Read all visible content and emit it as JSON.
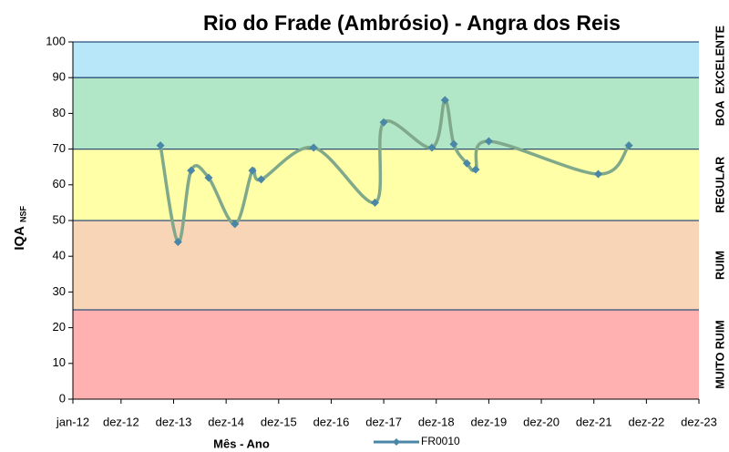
{
  "chart_data": {
    "type": "line",
    "title": "Rio do Frade (Ambrósio) - Angra dos Reis",
    "x_label": "Mês - Ano",
    "y_label": "IQA",
    "y_label_subscript": "NSF",
    "xlim": [
      "2012-01",
      "2023-12"
    ],
    "xticks": [
      {
        "value": "2012-01",
        "label": "jan-12"
      },
      {
        "value": "2012-12",
        "label": "dez-12"
      },
      {
        "value": "2013-12",
        "label": "dez-13"
      },
      {
        "value": "2014-12",
        "label": "dez-14"
      },
      {
        "value": "2015-12",
        "label": "dez-15"
      },
      {
        "value": "2016-12",
        "label": "dez-16"
      },
      {
        "value": "2017-12",
        "label": "dez-17"
      },
      {
        "value": "2018-12",
        "label": "dez-18"
      },
      {
        "value": "2019-12",
        "label": "dez-19"
      },
      {
        "value": "2020-12",
        "label": "dez-20"
      },
      {
        "value": "2021-12",
        "label": "dez-21"
      },
      {
        "value": "2022-12",
        "label": "dez-22"
      },
      {
        "value": "2023-12",
        "label": "dez-23"
      }
    ],
    "ylim": [
      0,
      100
    ],
    "yticks": [
      0,
      10,
      20,
      30,
      40,
      50,
      60,
      70,
      80,
      90,
      100
    ],
    "bands": [
      {
        "from": 0,
        "to": 25,
        "label": "MUITO RUIM",
        "color": "#ffb1b1"
      },
      {
        "from": 25,
        "to": 50,
        "label": "RUIM",
        "color": "#f8d5b6"
      },
      {
        "from": 50,
        "to": 70,
        "label": "REGULAR",
        "color": "#ffffa8"
      },
      {
        "from": 70,
        "to": 90,
        "label": "BOA",
        "color": "#b1e6c7"
      },
      {
        "from": 90,
        "to": 100,
        "label": "EXCELENTE",
        "color": "#b7e7f8"
      }
    ],
    "x": [
      "2013-09",
      "2014-01",
      "2014-04",
      "2014-08",
      "2015-02",
      "2015-06",
      "2015-08",
      "2016-08",
      "2017-10",
      "2017-12",
      "2018-11",
      "2019-02",
      "2019-04",
      "2019-07",
      "2019-09",
      "2019-12",
      "2022-01",
      "2022-08"
    ],
    "series": [
      {
        "name": "FR0010",
        "color": "#4a86a6",
        "line_color": "#7fa98a",
        "values": [
          71,
          44,
          64,
          62,
          49,
          64,
          61.5,
          70.4,
          55,
          77.5,
          70.4,
          83.7,
          71.4,
          66,
          64.3,
          72.2,
          63,
          71
        ]
      }
    ],
    "legend": "bottom"
  }
}
